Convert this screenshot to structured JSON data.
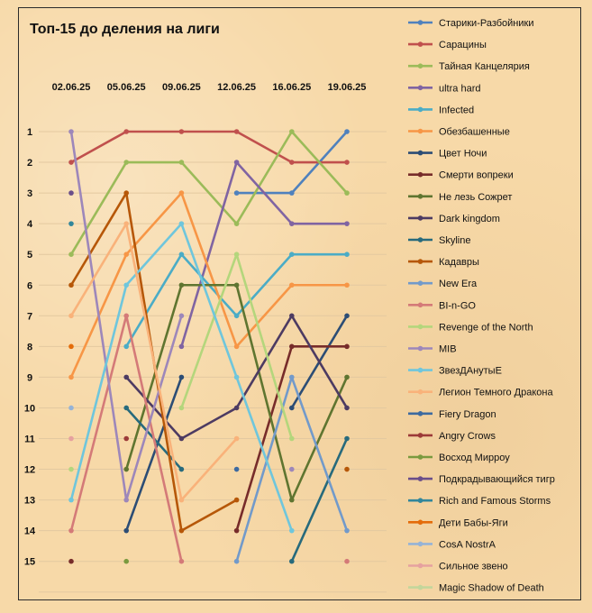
{
  "chart_data": {
    "type": "line",
    "title": "Топ-15 до деления на лиги",
    "x": [
      "02.06.25",
      "05.06.25",
      "09.06.25",
      "12.06.25",
      "16.06.25",
      "19.06.25"
    ],
    "y_ticks": [
      "1",
      "2",
      "3",
      "4",
      "5",
      "6",
      "7",
      "8",
      "9",
      "10",
      "11",
      "12",
      "13",
      "14",
      "15"
    ],
    "ylim": [
      15,
      1
    ],
    "y_reversed": true,
    "grid": true,
    "legend_position": "right",
    "series": [
      {
        "name": "Старики-Разбойники",
        "color": "#4f81bd",
        "values": [
          null,
          null,
          null,
          3,
          3,
          1
        ]
      },
      {
        "name": "Сарацины",
        "color": "#c0504d",
        "values": [
          2,
          1,
          1,
          1,
          2,
          2
        ]
      },
      {
        "name": "Тайная Канцелярия",
        "color": "#9bbb59",
        "values": [
          5,
          2,
          2,
          4,
          1,
          3
        ]
      },
      {
        "name": "ultra hard",
        "color": "#8064a2",
        "values": [
          null,
          null,
          8,
          2,
          4,
          4
        ]
      },
      {
        "name": "Infected",
        "color": "#4bacc6",
        "values": [
          null,
          8,
          5,
          7,
          5,
          5
        ]
      },
      {
        "name": "Обезбашенные",
        "color": "#f79646",
        "values": [
          9,
          5,
          3,
          8,
          6,
          6
        ]
      },
      {
        "name": "Цвет Ночи",
        "color": "#2c4d75",
        "values": [
          null,
          14,
          9,
          null,
          10,
          7
        ]
      },
      {
        "name": "Смерти вопреки",
        "color": "#772c2a",
        "values": [
          null,
          null,
          null,
          14,
          8,
          8
        ]
      },
      {
        "name": "Не лезь Сожрет",
        "color": "#5f7530",
        "values": [
          null,
          12,
          6,
          6,
          13,
          9
        ]
      },
      {
        "name": "Dark kingdom",
        "color": "#4d3b62",
        "values": [
          null,
          9,
          11,
          10,
          7,
          10
        ]
      },
      {
        "name": "Skyline",
        "color": "#276a7c",
        "values": [
          null,
          10,
          12,
          null,
          15,
          11
        ]
      },
      {
        "name": "Кадавры",
        "color": "#b65708",
        "values": [
          6,
          3,
          14,
          13,
          null,
          12
        ]
      },
      {
        "name": "New Era",
        "color": "#729aca",
        "values": [
          null,
          null,
          null,
          15,
          9,
          14
        ]
      },
      {
        "name": "BI-n-GO",
        "color": "#d47a78",
        "values": [
          14,
          7,
          15,
          null,
          null,
          15
        ]
      },
      {
        "name": "Revenge of the North",
        "color": "#b4d67c",
        "values": [
          12,
          null,
          10,
          5,
          11,
          null
        ]
      },
      {
        "name": "MIB",
        "color": "#9d87ba",
        "values": [
          1,
          13,
          7,
          null,
          12,
          null
        ]
      },
      {
        "name": "ЗвезДАнутыЕ",
        "color": "#6fc6dc",
        "values": [
          13,
          6,
          4,
          9,
          14,
          null
        ]
      },
      {
        "name": "Легион Темного Дракона",
        "color": "#f9b27a",
        "values": [
          7,
          4,
          13,
          11,
          null,
          null
        ]
      },
      {
        "name": "Fiery Dragon",
        "color": "#3d6aa0",
        "values": [
          null,
          null,
          null,
          12,
          null,
          null
        ]
      },
      {
        "name": "Angry Crows",
        "color": "#9c3a38",
        "values": [
          null,
          11,
          null,
          null,
          null,
          null
        ]
      },
      {
        "name": "Восход Мирроу",
        "color": "#7a9a3f",
        "values": [
          null,
          null,
          null,
          null,
          null,
          null
        ]
      },
      {
        "name": "Подкрадывающийся тигр",
        "color": "#6a4e8a",
        "values": [
          3,
          null,
          null,
          null,
          null,
          null
        ]
      },
      {
        "name": "Rich and Famous Storms",
        "color": "#31869b",
        "values": [
          4,
          null,
          null,
          null,
          null,
          null
        ]
      },
      {
        "name": "Дети Бабы-Яги",
        "color": "#e46c0a",
        "values": [
          8,
          null,
          null,
          null,
          null,
          null
        ]
      },
      {
        "name": "CosA NostrA",
        "color": "#95b3d7",
        "values": [
          10,
          null,
          null,
          null,
          null,
          null
        ]
      },
      {
        "name": "Сильное звено",
        "color": "#e6a19f",
        "values": [
          11,
          null,
          null,
          null,
          null,
          null
        ]
      },
      {
        "name": "Magic Shadow of Death",
        "color": "#c3d69b",
        "values": [
          null,
          null,
          null,
          null,
          null,
          null
        ]
      }
    ],
    "extra_points": [
      {
        "series": "Смерти вопреки",
        "x": "02.06.25",
        "y": 15
      },
      {
        "series": "Восход Мирроу",
        "x": "05.06.25",
        "y": 15
      }
    ]
  }
}
